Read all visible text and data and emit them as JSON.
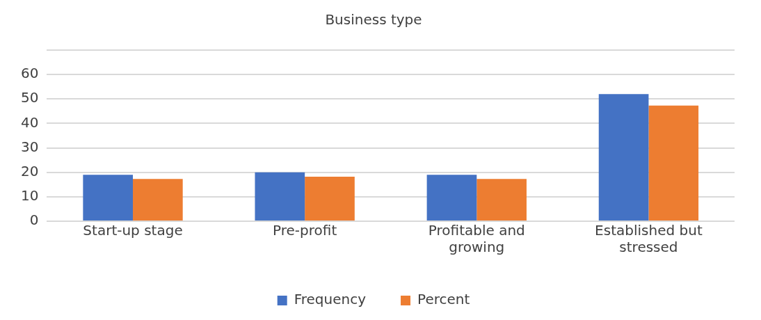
{
  "chart_data": {
    "type": "bar",
    "title": "Business type",
    "categories": [
      "Start-up stage",
      "Pre-profit",
      "Profitable and growing",
      "Established but stressed"
    ],
    "series": [
      {
        "name": "Frequency",
        "color": "#4472c4",
        "values": [
          19,
          20,
          19,
          52
        ]
      },
      {
        "name": "Percent",
        "color": "#ed7d31",
        "values": [
          17.3,
          18.2,
          17.3,
          47.3
        ]
      }
    ],
    "ylim": [
      0,
      70
    ],
    "yticks": [
      0,
      10,
      20,
      30,
      40,
      50,
      60,
      {
        "value": 70,
        "label": null
      }
    ],
    "grid": "y",
    "legend": "bottom"
  }
}
